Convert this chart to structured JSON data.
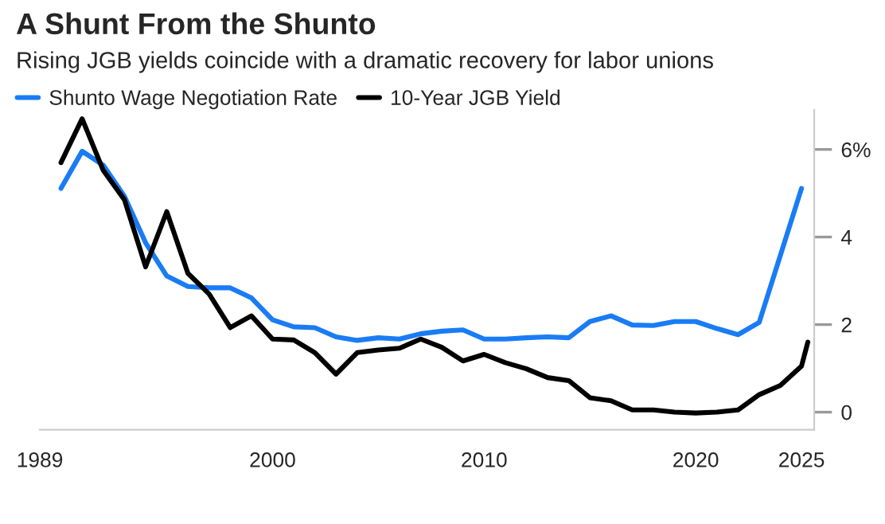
{
  "chart_data": {
    "type": "line",
    "title": "A Shunt From the Shunto",
    "subtitle": "Rising JGB yields coincide with a dramatic recovery for labor unions",
    "x": [
      1990,
      1991,
      1992,
      1993,
      1994,
      1995,
      1996,
      1997,
      1998,
      1999,
      2000,
      2001,
      2002,
      2003,
      2004,
      2005,
      2006,
      2007,
      2008,
      2009,
      2010,
      2011,
      2012,
      2013,
      2014,
      2015,
      2016,
      2017,
      2018,
      2019,
      2020,
      2021,
      2022,
      2023,
      2024,
      2025
    ],
    "series": [
      {
        "name": "Shunto Wage Negotiation Rate",
        "color": "#1a7cf5",
        "values": [
          5.11,
          5.96,
          5.64,
          4.93,
          3.87,
          3.11,
          2.87,
          2.84,
          2.84,
          2.61,
          2.11,
          1.95,
          1.93,
          1.72,
          1.64,
          1.7,
          1.67,
          1.79,
          1.85,
          1.88,
          1.67,
          1.67,
          1.7,
          1.72,
          1.7,
          2.07,
          2.2,
          1.99,
          1.98,
          2.07,
          2.07,
          1.91,
          1.77,
          2.05,
          3.58,
          5.11
        ]
      },
      {
        "name": "10-Year JGB Yield",
        "color": "#000000",
        "x": [
          1990,
          1991,
          1992,
          1993,
          1994,
          1995,
          1996,
          1997,
          1998,
          1999,
          2000,
          2001,
          2002,
          2003,
          2004,
          2005,
          2006,
          2007,
          2008,
          2009,
          2010,
          2011,
          2012,
          2013,
          2014,
          2015,
          2016,
          2017,
          2018,
          2019,
          2020,
          2021,
          2022,
          2023,
          2024,
          2025,
          2025.3
        ],
        "values": [
          5.7,
          6.7,
          5.52,
          4.85,
          3.32,
          4.58,
          3.17,
          2.7,
          1.93,
          2.2,
          1.67,
          1.65,
          1.36,
          0.87,
          1.36,
          1.42,
          1.46,
          1.67,
          1.48,
          1.17,
          1.32,
          1.13,
          0.99,
          0.79,
          0.72,
          0.33,
          0.26,
          0.05,
          0.05,
          0.0,
          -0.02,
          0.0,
          0.05,
          0.4,
          0.61,
          1.05,
          1.6
        ]
      }
    ],
    "xlim": [
      1989,
      2025.6
    ],
    "xticks": [
      1989,
      2000,
      2010,
      2020,
      2025
    ],
    "ylim": [
      -0.4,
      6.9
    ],
    "yticks": [
      0,
      2,
      4,
      {
        "value": 6,
        "label": "6%"
      }
    ],
    "legend": "top left",
    "grid": false
  }
}
